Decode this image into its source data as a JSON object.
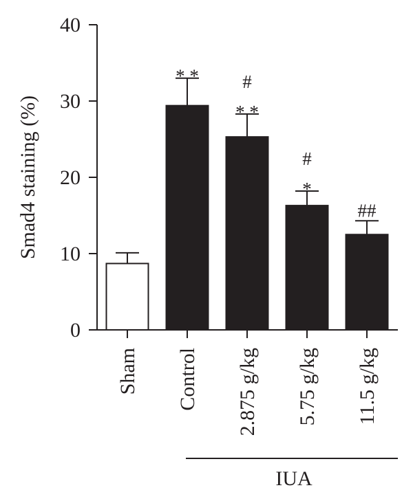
{
  "chart_data": {
    "type": "bar",
    "categories": [
      "Sham",
      "Control",
      "2.875 g/kg",
      "5.75 g/kg",
      "11.5 g/kg"
    ],
    "values": [
      8.7,
      29.4,
      25.3,
      16.3,
      12.5
    ],
    "errors": [
      1.4,
      3.6,
      3.0,
      1.9,
      1.8
    ],
    "fills": [
      "#ffffff",
      "#231f20",
      "#231f20",
      "#231f20",
      "#231f20"
    ],
    "significance": [
      [],
      [
        "* *"
      ],
      [
        "#",
        "* *"
      ],
      [
        "#",
        "*"
      ],
      [
        "##"
      ]
    ],
    "ylabel": "Smad4 staining (%)",
    "ylim": [
      0,
      40
    ],
    "yticks": [
      "0",
      "10",
      "20",
      "30",
      "40"
    ],
    "group_label": "IUA",
    "group_categories": [
      "Control",
      "2.875 g/kg",
      "5.75 g/kg",
      "11.5 g/kg"
    ]
  }
}
